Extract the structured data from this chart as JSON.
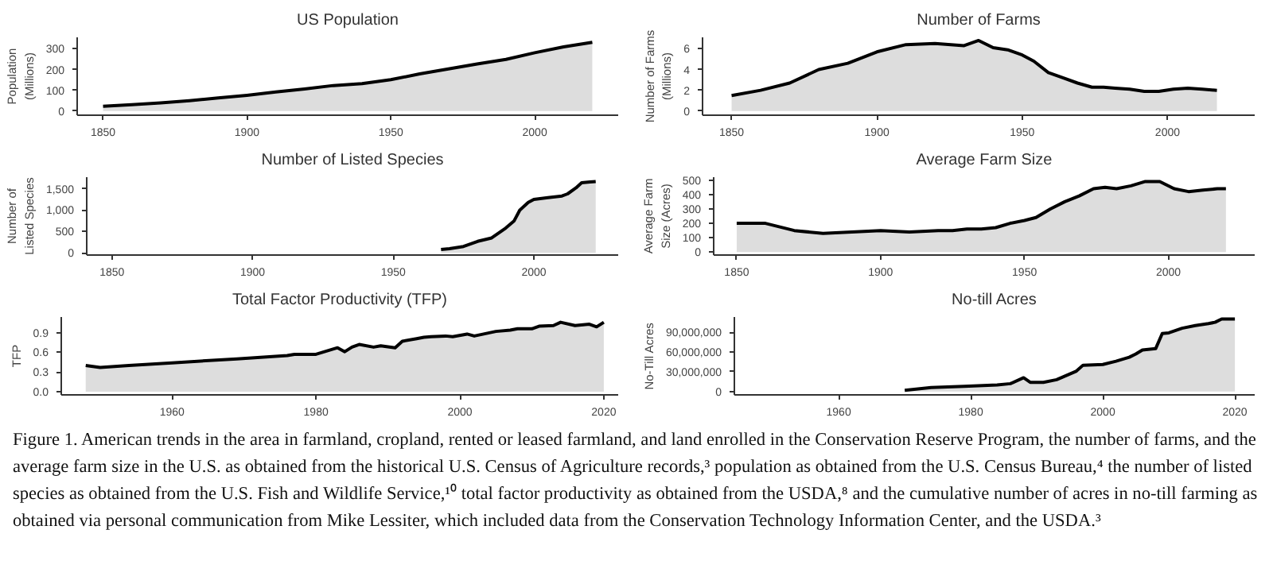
{
  "chart_data": [
    {
      "type": "area",
      "title": "US Population",
      "ylabel": "Population (Millions)",
      "color": "#dddddd",
      "x": [
        1850,
        1860,
        1870,
        1880,
        1890,
        1900,
        1910,
        1920,
        1930,
        1940,
        1950,
        1960,
        1970,
        1980,
        1990,
        2000,
        2010,
        2020
      ],
      "values": [
        23,
        31,
        39,
        50,
        63,
        76,
        92,
        106,
        123,
        132,
        151,
        179,
        203,
        227,
        249,
        281,
        309,
        331
      ],
      "xlim": [
        1841,
        2029
      ],
      "ylim": [
        -20,
        355
      ],
      "xticks": [
        1850,
        1900,
        1950,
        2000
      ],
      "yticks": [
        0,
        100,
        200,
        300
      ]
    },
    {
      "type": "area",
      "title": "Number of Farms",
      "ylabel": "Number of Farms (Millions)",
      "color": "#dddddd",
      "x": [
        1850,
        1860,
        1870,
        1880,
        1890,
        1900,
        1910,
        1920,
        1930,
        1935,
        1940,
        1945,
        1950,
        1954,
        1959,
        1964,
        1969,
        1974,
        1978,
        1982,
        1987,
        1992,
        1997,
        2002,
        2007,
        2012,
        2017
      ],
      "values": [
        1.5,
        2.0,
        2.7,
        4.0,
        4.6,
        5.7,
        6.4,
        6.5,
        6.3,
        6.8,
        6.1,
        5.9,
        5.4,
        4.8,
        3.7,
        3.2,
        2.7,
        2.3,
        2.3,
        2.2,
        2.1,
        1.9,
        1.9,
        2.1,
        2.2,
        2.1,
        2.0
      ],
      "xlim": [
        1840,
        2030
      ],
      "ylim": [
        -0.4,
        7.1
      ],
      "xticks": [
        1850,
        1900,
        1950,
        2000
      ],
      "yticks": [
        0,
        2,
        4,
        6
      ]
    },
    {
      "type": "area",
      "title": "Number of Listed Species",
      "ylabel": "Number of Listed Species",
      "color": "#dddddd",
      "x": [
        1967,
        1970,
        1975,
        1980,
        1985,
        1990,
        1993,
        1995,
        1998,
        2000,
        2005,
        2010,
        2012,
        2015,
        2017,
        2020,
        2022
      ],
      "values": [
        80,
        100,
        150,
        270,
        350,
        580,
        750,
        1000,
        1180,
        1250,
        1290,
        1330,
        1380,
        1520,
        1640,
        1660,
        1670
      ],
      "xlim": [
        1841,
        2030
      ],
      "ylim": [
        -50,
        1770
      ],
      "xticks": [
        1850,
        1900,
        1950,
        2000
      ],
      "yticks": [
        0,
        500,
        {
          "value": 1000,
          "label": "1,000"
        },
        {
          "value": 1500,
          "label": "1,500"
        }
      ]
    },
    {
      "type": "area",
      "title": "Average Farm Size",
      "ylabel": "Average Farm Size (Acres)",
      "color": "#dddddd",
      "x": [
        1850,
        1860,
        1870,
        1880,
        1890,
        1900,
        1910,
        1920,
        1925,
        1930,
        1935,
        1940,
        1945,
        1950,
        1954,
        1959,
        1964,
        1969,
        1974,
        1978,
        1982,
        1987,
        1992,
        1997,
        2002,
        2007,
        2012,
        2017,
        2020
      ],
      "values": [
        200,
        200,
        150,
        130,
        140,
        150,
        140,
        150,
        150,
        160,
        160,
        170,
        200,
        220,
        240,
        300,
        350,
        390,
        440,
        450,
        440,
        460,
        490,
        490,
        440,
        420,
        430,
        440,
        440
      ],
      "xlim": [
        1842,
        2030
      ],
      "ylim": [
        -20,
        520
      ],
      "xticks": [
        1850,
        1900,
        1950,
        2000
      ],
      "yticks": [
        0,
        100,
        200,
        300,
        400,
        500
      ]
    },
    {
      "type": "area",
      "title": "Total Factor Productivity (TFP)",
      "ylabel": "TFP",
      "color": "#dddddd",
      "x": [
        1948,
        1950,
        1954,
        1960,
        1969,
        1976,
        1977,
        1980,
        1983,
        1984,
        1985,
        1986,
        1988,
        1989,
        1991,
        1992,
        1994,
        1995,
        1996,
        1998,
        1999,
        2001,
        2002,
        2005,
        2007,
        2008,
        2010,
        2011,
        2013,
        2014,
        2016,
        2018,
        2019,
        2020
      ],
      "values": [
        0.4,
        0.37,
        0.4,
        0.44,
        0.5,
        0.55,
        0.57,
        0.57,
        0.67,
        0.61,
        0.68,
        0.72,
        0.68,
        0.7,
        0.67,
        0.77,
        0.81,
        0.83,
        0.84,
        0.85,
        0.84,
        0.88,
        0.85,
        0.92,
        0.94,
        0.96,
        0.96,
        1.0,
        1.01,
        1.06,
        1.01,
        1.03,
        0.99,
        1.06
      ],
      "xlim": [
        1944.6,
        2022
      ],
      "ylim": [
        -0.05,
        1.14
      ],
      "xticks": [
        1960,
        1980,
        2000,
        2020
      ],
      "yticks": [
        {
          "value": 0,
          "label": "0.0"
        },
        0.3,
        0.6,
        0.9
      ]
    },
    {
      "type": "area",
      "title": "No-till Acres",
      "ylabel": "No-Till Acres",
      "color": "#dddddd",
      "x": [
        1970,
        1974,
        1979,
        1984,
        1986,
        1988,
        1989,
        1991,
        1993,
        1996,
        1997,
        2000,
        2002,
        2004,
        2005,
        2006,
        2008,
        2009,
        2010,
        2012,
        2014,
        2016,
        2017,
        2018,
        2020
      ],
      "values": [
        2000000,
        6000000,
        8000000,
        10000000,
        12000000,
        21000000,
        14000000,
        14000000,
        18000000,
        31000000,
        40000000,
        41000000,
        46000000,
        52000000,
        57000000,
        63000000,
        65000000,
        88000000,
        89000000,
        96000000,
        100000000,
        103000000,
        105000000,
        110000000,
        110000000
      ],
      "xlim": [
        1944.2,
        2023
      ],
      "ylim": [
        -5000000,
        113000000
      ],
      "xticks": [
        1960,
        1980,
        2000,
        2020
      ],
      "yticks": [
        {
          "value": 0,
          "label": "0"
        },
        {
          "value": 30000000,
          "label": "30,000,000"
        },
        {
          "value": 60000000,
          "label": "60,000,000"
        },
        {
          "value": 90000000,
          "label": "90,000,000"
        }
      ],
      "annotations": [
        "Figure 1. American trends in the area in farmland, cropland, rented or leased farmland, and land enrolled in the Conservation Reserve Program, the number of farms, and the average farm size in the U.S. as obtained from the historical U.S. Census of Agriculture records,³ population as obtained from the U.S. Census Bureau,⁴ the number of listed species as obtained from the U.S. Fish and Wildlife Service,¹⁰ total factor productivity as obtained from the USDA,⁸ and the cumulative number of acres in no-till farming as obtained via personal communication from Mike Lessiter, which included data from the Conservation Technology Information Center, and the USDA.³"
      ]
    }
  ]
}
